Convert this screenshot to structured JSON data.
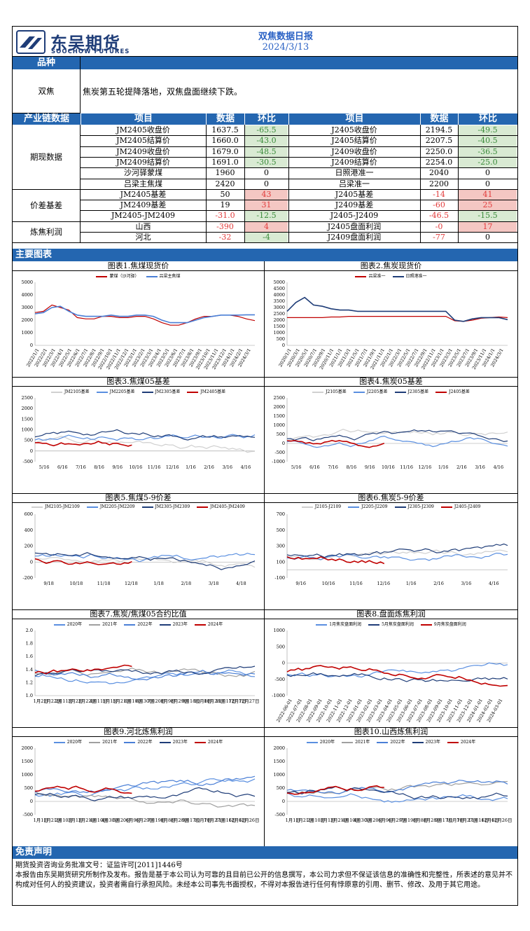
{
  "header": {
    "logo_cn": "东吴期货",
    "logo_en": "SOOCHOW FUTURES",
    "title": "双焦数据日报",
    "date": "2024/3/13"
  },
  "variety": {
    "bar": "品种",
    "name": "双焦",
    "summary": "焦炭第五轮提降落地，双焦盘面继续下跌。"
  },
  "table": {
    "bar_label": "产业链数据",
    "headers": [
      "项目",
      "数据",
      "环比",
      "项目",
      "数据",
      "环比"
    ],
    "groups": [
      {
        "label": "期现数据",
        "rows": [
          [
            "JM2405收盘价",
            "1637.5",
            "-65.5",
            "J2405收盘价",
            "2194.5",
            "-49.5"
          ],
          [
            "JM2405结算价",
            "1660.0",
            "-43.0",
            "J2405结算价",
            "2207.5",
            "-40.5"
          ],
          [
            "JM2409收盘价",
            "1679.0",
            "-48.5",
            "J2409收盘价",
            "2250.0",
            "-36.5"
          ],
          [
            "JM2409结算价",
            "1691.0",
            "-30.5",
            "J2409结算价",
            "2254.0",
            "-25.0"
          ],
          [
            "沙河驿蒙煤",
            "1960",
            "0",
            "日照港准一",
            "2040",
            "0"
          ],
          [
            "吕梁主焦煤",
            "2420",
            "0",
            "吕梁准一",
            "2200",
            "0"
          ]
        ]
      },
      {
        "label": "价差基差",
        "rows": [
          [
            "JM2405基差",
            "50",
            "43",
            "J2405基差",
            "-14",
            "41"
          ],
          [
            "JM2409基差",
            "19",
            "31",
            "J2409基差",
            "-60",
            "25"
          ],
          [
            "JM2405-JM2409",
            "-31.0",
            "-12.5",
            "J2405-J2409",
            "-46.5",
            "-15.5"
          ]
        ]
      },
      {
        "label": "炼焦利润",
        "rows": [
          [
            "山西",
            "-390",
            "4",
            "J2405盘面利润",
            "-0",
            "17"
          ],
          [
            "河北",
            "-32",
            "-4",
            "J2409盘面利润",
            "-77",
            "0"
          ]
        ]
      }
    ]
  },
  "charts_bar": "主要图表",
  "charts": [
    {
      "title": "图表1.焦煤现货价",
      "legend": [
        {
          "name": "蒙煤（沙河驿）",
          "color": "#c00000"
        },
        {
          "name": "吕梁主焦煤",
          "color": "#4a7fd6"
        }
      ]
    },
    {
      "title": "图表2.焦炭现货价",
      "legend": [
        {
          "name": "吕梁准一",
          "color": "#c00000"
        },
        {
          "name": "日照港准一",
          "color": "#1f3d78"
        }
      ]
    },
    {
      "title": "图表3.焦煤05基差",
      "legend": [
        {
          "name": "JM2105基差",
          "color": "#d0d0d0"
        },
        {
          "name": "JM2205基差",
          "color": "#5a8fe0"
        },
        {
          "name": "JM2305基差",
          "color": "#1f3d78"
        },
        {
          "name": "JM2405基差",
          "color": "#c00000"
        }
      ]
    },
    {
      "title": "图表4.焦炭05基差",
      "legend": [
        {
          "name": "J2105基差",
          "color": "#d0d0d0"
        },
        {
          "name": "J2205基差",
          "color": "#5a8fe0"
        },
        {
          "name": "J2305基差",
          "color": "#1f3d78"
        },
        {
          "name": "J2405基差",
          "color": "#c00000"
        }
      ]
    },
    {
      "title": "图表5.焦煤5-9价差",
      "legend": [
        {
          "name": "JM2105-JM2109",
          "color": "#d0d0d0"
        },
        {
          "name": "JM2205-JM2209",
          "color": "#5a8fe0"
        },
        {
          "name": "JM2305-JM2309",
          "color": "#1f3d78"
        },
        {
          "name": "JM2405-JM2409",
          "color": "#c00000"
        }
      ]
    },
    {
      "title": "图表6.焦炭5-9价差",
      "legend": [
        {
          "name": "J2105-J2109",
          "color": "#d0d0d0"
        },
        {
          "name": "J2205-J2209",
          "color": "#5a8fe0"
        },
        {
          "name": "J2305-J2309",
          "color": "#1f3d78"
        },
        {
          "name": "J2405-J2409",
          "color": "#c00000"
        }
      ]
    },
    {
      "title": "图表7.焦炭/焦煤05合约比值",
      "legend": [
        {
          "name": "2020年",
          "color": "#5a8fe0"
        },
        {
          "name": "2021年",
          "color": "#a0a0a0"
        },
        {
          "name": "2022年",
          "color": "#4a7fd6"
        },
        {
          "name": "2023年",
          "color": "#1f3d78"
        },
        {
          "name": "2024年",
          "color": "#c00000"
        }
      ]
    },
    {
      "title": "图表8.盘面炼焦利润",
      "legend": [
        {
          "name": "1月焦炭盘面利润",
          "color": "#5a8fe0"
        },
        {
          "name": "5月焦炭盘面利润",
          "color": "#1f3d78"
        },
        {
          "name": "9月焦炭盘面利润",
          "color": "#c00000"
        }
      ]
    },
    {
      "title": "图表9.河北炼焦利润",
      "legend": [
        {
          "name": "2020年",
          "color": "#5a8fe0"
        },
        {
          "name": "2021年",
          "color": "#a0a0a0"
        },
        {
          "name": "2022年",
          "color": "#4a7fd6"
        },
        {
          "name": "2023年",
          "color": "#1f3d78"
        },
        {
          "name": "2024年",
          "color": "#c00000"
        }
      ]
    },
    {
      "title": "图表10.山西炼焦利润",
      "legend": [
        {
          "name": "2020年",
          "color": "#5a8fe0"
        },
        {
          "name": "2021年",
          "color": "#a0a0a0"
        },
        {
          "name": "2022年",
          "color": "#4a7fd6"
        },
        {
          "name": "2023年",
          "color": "#1f3d78"
        },
        {
          "name": "2024年",
          "color": "#c00000"
        }
      ]
    }
  ],
  "chart_data": [
    {
      "type": "line",
      "yticks": [
        "5000",
        "4000",
        "3000",
        "2000",
        "1000",
        "0"
      ],
      "xticks": [
        "2022/1/1",
        "2022/2/1",
        "2022/3/1",
        "2022/4/1",
        "2022/5/1",
        "2022/6/1",
        "2022/7/1",
        "2022/8/1",
        "2022/9/1",
        "2022/10/1",
        "2022/11/1",
        "2022/12/1",
        "2023/1/1",
        "2023/2/1",
        "2023/3/1",
        "2023/4/1",
        "2023/5/1",
        "2023/6/1",
        "2023/7/1",
        "2023/8/1",
        "2023/9/1",
        "2023/10/1",
        "2023/11/1",
        "2023/12/1",
        "2024/1/1",
        "2024/2/1",
        "2024/3/1"
      ],
      "ylim": [
        0,
        5000
      ],
      "series": [
        {
          "name": "蒙煤（沙河驿）",
          "values": [
            2600,
            2700,
            3200,
            3000,
            2800,
            2200,
            2100,
            2100,
            2300,
            2300,
            2200,
            2200,
            2300,
            2300,
            2100,
            1800,
            1600,
            1600,
            1800,
            2100,
            2300,
            2300,
            2400,
            2400,
            2300,
            2100,
            1960
          ]
        },
        {
          "name": "吕梁主焦煤",
          "values": [
            2500,
            2600,
            3000,
            3100,
            2700,
            2400,
            2300,
            2300,
            2300,
            2400,
            2300,
            2300,
            2400,
            2400,
            2300,
            2000,
            1800,
            1800,
            1800,
            2000,
            2200,
            2300,
            2400,
            2400,
            2400,
            2420,
            2420
          ]
        }
      ]
    },
    {
      "type": "line",
      "yticks": [
        "5000",
        "4500",
        "4000",
        "3500",
        "3000",
        "2500",
        "2000",
        "1500",
        "1000",
        "500",
        "0"
      ],
      "ylim": [
        0,
        5000
      ],
      "xticks": [
        "2020/1/1",
        "2020/3/1",
        "2020/5/1",
        "2020/7/1",
        "2020/9/1",
        "2020/11/1",
        "2021/1/1",
        "2021/3/1",
        "2021/5/1",
        "2021/7/1",
        "2021/9/1",
        "2021/11/1",
        "2022/1/1",
        "2022/3/1",
        "2022/5/1",
        "2022/7/1",
        "2022/9/1",
        "2022/11/1",
        "2023/1/1",
        "2023/3/1",
        "2023/5/1",
        "2023/7/1",
        "2023/9/1",
        "2023/11/1",
        "2024/1/1",
        "2024/3/1"
      ],
      "series": [
        {
          "name": "吕梁准一",
          "values": [
            2200,
            2200,
            2200,
            2200,
            2200,
            2250,
            2250,
            2300,
            2300,
            2300,
            2300,
            2300,
            2300,
            2300,
            2300,
            2300,
            2300,
            2300,
            2300,
            1950,
            1900,
            2000,
            2150,
            2200,
            2250,
            2200
          ]
        },
        {
          "name": "日照港准一",
          "values": [
            2700,
            3400,
            3800,
            3200,
            3100,
            2900,
            2800,
            2800,
            2700,
            2700,
            2700,
            2700,
            2700,
            2700,
            2700,
            2700,
            2700,
            2700,
            2700,
            2000,
            1900,
            2100,
            2200,
            2200,
            2200,
            2040
          ]
        }
      ]
    },
    {
      "type": "line",
      "yticks": [
        "2500",
        "2000",
        "1500",
        "1000",
        "500",
        "0",
        "-500"
      ],
      "ylim": [
        -500,
        2500
      ],
      "xticks": [
        "5/16",
        "6/16",
        "7/16",
        "8/16",
        "9/16",
        "10/16",
        "11/16",
        "12/16",
        "1/16",
        "2/16",
        "3/16",
        "4/16"
      ]
    },
    {
      "type": "line",
      "yticks": [
        "2500",
        "2000",
        "1500",
        "1000",
        "500",
        "0",
        "-500",
        "-1000"
      ],
      "ylim": [
        -1000,
        2500
      ],
      "xticks": [
        "5/16",
        "6/16",
        "7/16",
        "8/16",
        "9/16",
        "10/16",
        "11/16",
        "12/16",
        "1/16",
        "2/16",
        "3/16",
        "4/16"
      ]
    },
    {
      "type": "line",
      "yticks": [
        "600",
        "400",
        "200",
        "0",
        "-200"
      ],
      "ylim": [
        -200,
        600
      ],
      "xticks": [
        "9/18",
        "10/18",
        "11/18",
        "12/18",
        "1/18",
        "2/18",
        "3/18",
        "4/18"
      ]
    },
    {
      "type": "line",
      "yticks": [
        "700",
        "500",
        "300",
        "100",
        "-100"
      ],
      "ylim": [
        -100,
        700
      ],
      "xticks": [
        "9/16",
        "10/16",
        "11/16",
        "12/16",
        "1/16",
        "2/16",
        "3/16",
        "4/16"
      ]
    },
    {
      "type": "line",
      "yticks": [
        "2.0",
        "1.8",
        "1.6",
        "1.4",
        "1.2",
        "1.0"
      ],
      "ylim": [
        1.0,
        2.0
      ],
      "xticks": [
        "1月2日",
        "1月22日",
        "2月11日",
        "3月2日",
        "3月22日",
        "4月11日",
        "5月1日",
        "5月21日",
        "6月10日",
        "6月30日",
        "7月20日",
        "8月9日",
        "8月29日",
        "9月18日",
        "10月8日",
        "10月28日",
        "11月17日",
        "12月7日",
        "12月27日"
      ]
    },
    {
      "type": "line",
      "yticks": [
        "1000",
        "500",
        "0",
        "-500",
        "-1000"
      ],
      "ylim": [
        -1000,
        1000
      ],
      "xticks": [
        "2022-06-01",
        "2022-07-01",
        "2022-08-01",
        "2022-09-01",
        "2022-10-01",
        "2022-11-01",
        "2022-12-01",
        "2023-01-01",
        "2023-02-01",
        "2023-03-01",
        "2023-04-01",
        "2023-05-01",
        "2023-06-01",
        "2023-07-01",
        "2023-08-01",
        "2023-09-01",
        "2023-10-01",
        "2023-11-01",
        "2023-12-01",
        "2024-01-01",
        "2024-02-01",
        "2024-03-01"
      ]
    },
    {
      "type": "line",
      "yticks": [
        "2000",
        "1500",
        "1000",
        "500",
        "0",
        "-500"
      ],
      "ylim": [
        -500,
        2000
      ],
      "xticks": [
        "1月1日",
        "1月21日",
        "2月10日",
        "3月1日",
        "3月21日",
        "4月10日",
        "4月30日",
        "5月20日",
        "6月9日",
        "6月29日",
        "7月19日",
        "8月8日",
        "8月28日",
        "9月17日",
        "10月7日",
        "10月27日",
        "11月16日",
        "12月6日",
        "12月26日"
      ]
    },
    {
      "type": "line",
      "yticks": [
        "2000",
        "1500",
        "1000",
        "500",
        "0",
        "-500"
      ],
      "ylim": [
        -500,
        2000
      ],
      "xticks": [
        "1月1日",
        "1月21日",
        "2月10日",
        "3月1日",
        "3月21日",
        "4月10日",
        "4月30日",
        "5月20日",
        "6月9日",
        "6月29日",
        "7月19日",
        "8月8日",
        "8月28日",
        "9月17日",
        "10月7日",
        "10月27日",
        "11月16日",
        "12月6日",
        "12月26日"
      ]
    }
  ],
  "disclaimer": {
    "bar": "免责声明",
    "license": "期货投资咨询业务批准文号：证监许可[2011]1446号",
    "text": "本报告由东吴期货研究所制作及发布。报告是基于本公司认为可靠的且目前已公开的信息撰写，本公司力求但不保证该信息的准确性和完整性，所表述的意见并不构成对任何人的投资建议，投资者需自行承担风险。未经本公司事先书面授权，不得对本报告进行任何有悖原意的引用、删节、修改、及用于其它用途。"
  }
}
